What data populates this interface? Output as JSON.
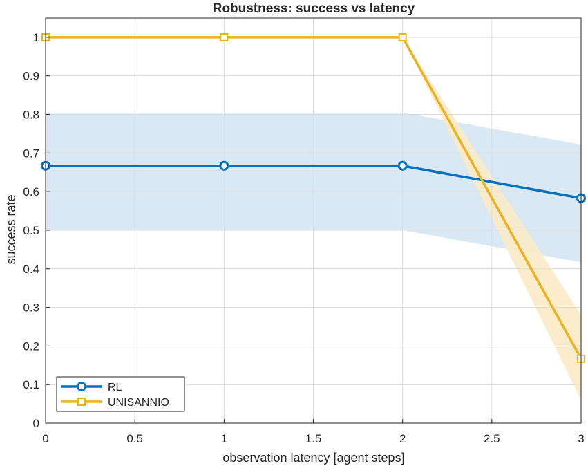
{
  "chart_data": {
    "type": "line",
    "title": "Robustness: success vs latency",
    "xlabel": "observation latency [agent steps]",
    "ylabel": "success rate",
    "xlim": [
      0,
      3
    ],
    "ylim": [
      0,
      1.05
    ],
    "x_ticks": [
      0,
      0.5,
      1,
      1.5,
      2,
      2.5,
      3
    ],
    "x_tick_labels": [
      "0",
      "0.5",
      "1",
      "1.5",
      "2",
      "2.5",
      "3"
    ],
    "y_ticks": [
      0,
      0.1,
      0.2,
      0.3,
      0.4,
      0.5,
      0.6,
      0.7,
      0.8,
      0.9,
      1
    ],
    "y_tick_labels": [
      "0",
      "0.1",
      "0.2",
      "0.3",
      "0.4",
      "0.5",
      "0.6",
      "0.7",
      "0.8",
      "0.9",
      "1"
    ],
    "grid": true,
    "legend_position": "bottom-left",
    "x": [
      0,
      1,
      2,
      3
    ],
    "series": [
      {
        "name": "RL",
        "values": [
          0.667,
          0.667,
          0.667,
          0.583
        ],
        "band_lower": [
          0.5,
          0.5,
          0.5,
          0.417
        ],
        "band_upper": [
          0.805,
          0.805,
          0.805,
          0.722
        ],
        "color": "#0072BD",
        "band_color": "#D6E6F3",
        "marker": "circle"
      },
      {
        "name": "UNISANNIO",
        "values": [
          1,
          1,
          1,
          0.167
        ],
        "band_lower": [
          1,
          1,
          1,
          0.06
        ],
        "band_upper": [
          1,
          1,
          1,
          0.28
        ],
        "color": "#EDB120",
        "band_color": "#FBEBC7",
        "marker": "square"
      }
    ]
  }
}
